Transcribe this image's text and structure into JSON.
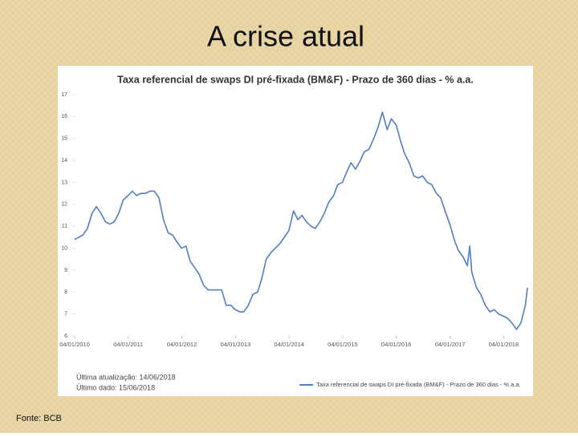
{
  "slide_title": "A crise atual",
  "source": "Fonte: BCB",
  "chart_data": {
    "type": "line",
    "title": "Taxa referencial de swaps DI pré-fixada (BM&F) - Prazo de 360 dias - % a.a.",
    "notes": [
      "Última atualização: 14/06/2018",
      "Último dado: 15/06/2018"
    ],
    "legend": "bottom-right",
    "xlim": [
      "04/01/2010",
      "15/06/2018"
    ],
    "xticks": [
      "04/01/2010",
      "04/01/2011",
      "04/01/2012",
      "04/01/2013",
      "04/01/2014",
      "04/01/2015",
      "04/01/2016",
      "04/01/2017",
      "04/01/2018"
    ],
    "ylim": [
      6,
      17
    ],
    "yticks": [
      6,
      7,
      8,
      9,
      10,
      11,
      12,
      13,
      14,
      15,
      16,
      17
    ],
    "x": [
      "04/01/2010",
      "01/03/2010",
      "01/04/2010",
      "03/05/2010",
      "01/06/2010",
      "01/07/2010",
      "02/08/2010",
      "01/09/2010",
      "01/10/2010",
      "01/11/2010",
      "01/12/2010",
      "03/01/2011",
      "01/02/2011",
      "01/03/2011",
      "01/04/2011",
      "02/05/2011",
      "01/06/2011",
      "01/07/2011",
      "01/08/2011",
      "01/09/2011",
      "03/10/2011",
      "01/11/2011",
      "01/12/2011",
      "02/01/2012",
      "01/02/2012",
      "01/03/2012",
      "02/04/2012",
      "02/05/2012",
      "01/06/2012",
      "02/07/2012",
      "01/08/2012",
      "03/09/2012",
      "01/10/2012",
      "01/11/2012",
      "03/12/2012",
      "02/01/2013",
      "01/02/2013",
      "01/03/2013",
      "01/04/2013",
      "02/05/2013",
      "03/06/2013",
      "01/07/2013",
      "01/08/2013",
      "02/09/2013",
      "01/10/2013",
      "01/11/2013",
      "02/12/2013",
      "02/01/2014",
      "03/02/2014",
      "05/03/2014",
      "01/04/2014",
      "02/05/2014",
      "02/06/2014",
      "01/07/2014",
      "01/08/2014",
      "01/09/2014",
      "01/10/2014",
      "03/11/2014",
      "01/12/2014",
      "02/01/2015",
      "02/02/2015",
      "02/03/2015",
      "01/04/2015",
      "04/05/2015",
      "01/06/2015",
      "01/07/2015",
      "03/08/2015",
      "01/09/2015",
      "01/10/2015",
      "03/11/2015",
      "01/12/2015",
      "04/01/2016",
      "01/02/2016",
      "01/03/2016",
      "01/04/2016",
      "02/05/2016",
      "01/06/2016",
      "01/07/2016",
      "01/08/2016",
      "01/09/2016",
      "03/10/2016",
      "01/11/2016",
      "01/12/2016",
      "02/01/2017",
      "01/02/2017",
      "01/03/2017",
      "03/04/2017",
      "02/05/2017",
      "18/05/2017",
      "01/06/2017",
      "03/07/2017",
      "01/08/2017",
      "01/09/2017",
      "02/10/2017",
      "01/11/2017",
      "01/12/2017",
      "04/01/2018",
      "01/02/2018",
      "01/03/2018",
      "02/04/2018",
      "02/05/2018",
      "01/06/2018",
      "15/06/2018"
    ],
    "series": [
      {
        "name": "Taxa referencial de swaps DI pré-fixada (BM&F) - Prazo de 360 dias - % a.a.",
        "color": "#4f7fc0",
        "values": [
          10.4,
          10.6,
          10.9,
          11.6,
          11.9,
          11.6,
          11.2,
          11.1,
          11.2,
          11.6,
          12.2,
          12.4,
          12.6,
          12.4,
          12.5,
          12.5,
          12.6,
          12.6,
          12.3,
          11.3,
          10.7,
          10.6,
          10.3,
          10.0,
          10.1,
          9.4,
          9.1,
          8.8,
          8.3,
          8.1,
          8.1,
          8.1,
          8.1,
          7.4,
          7.4,
          7.2,
          7.1,
          7.1,
          7.4,
          7.9,
          8.0,
          8.6,
          9.5,
          9.8,
          10.0,
          10.2,
          10.5,
          10.8,
          11.7,
          11.3,
          11.5,
          11.2,
          11.0,
          10.9,
          11.2,
          11.6,
          12.1,
          12.4,
          12.9,
          13.0,
          13.5,
          13.9,
          13.6,
          14.0,
          14.4,
          14.5,
          15.0,
          15.5,
          16.2,
          15.4,
          15.9,
          15.6,
          14.9,
          14.3,
          13.9,
          13.3,
          13.2,
          13.3,
          13.0,
          12.9,
          12.5,
          12.3,
          11.7,
          11.1,
          10.4,
          9.9,
          9.6,
          9.2,
          10.1,
          8.9,
          8.2,
          7.9,
          7.4,
          7.1,
          7.2,
          7.0,
          6.9,
          6.8,
          6.6,
          6.3,
          6.6,
          7.4,
          8.2
        ]
      }
    ]
  }
}
